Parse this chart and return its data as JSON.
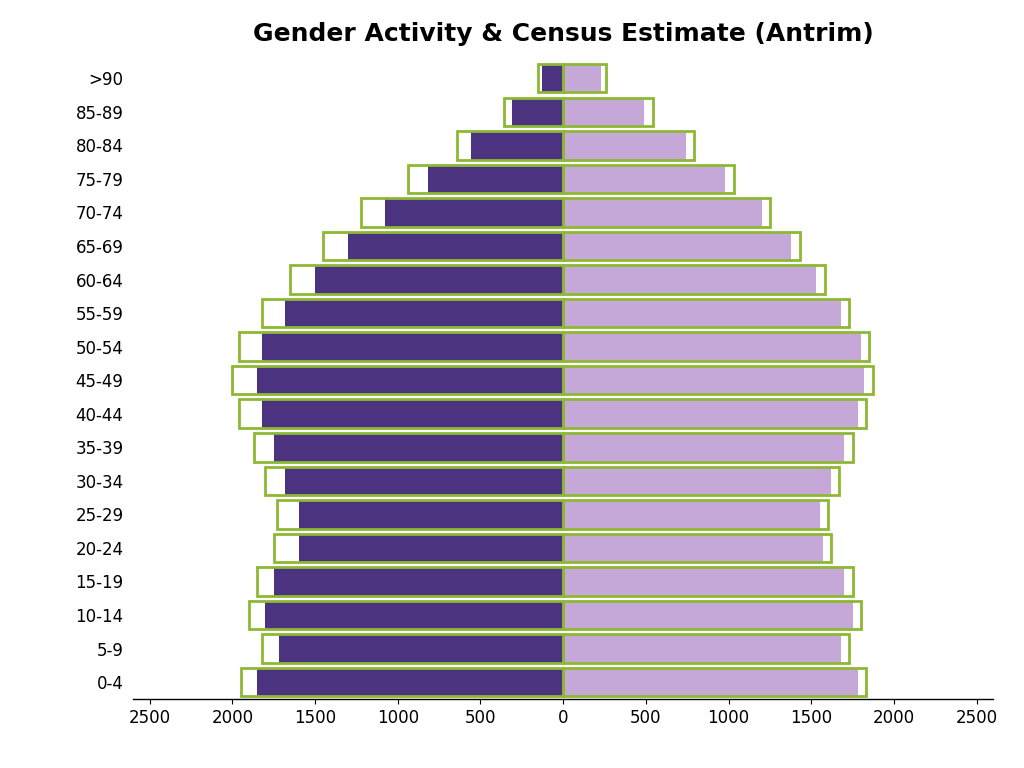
{
  "title": "Gender Activity & Census Estimate (Antrim)",
  "age_groups": [
    "0-4",
    "5-9",
    "10-14",
    "15-19",
    "20-24",
    "25-29",
    "30-34",
    "35-39",
    "40-44",
    "45-49",
    "50-54",
    "55-59",
    "60-64",
    "65-69",
    "70-74",
    "75-79",
    "80-84",
    "85-89",
    ">90"
  ],
  "male_activity": [
    1850,
    1720,
    1800,
    1750,
    1600,
    1600,
    1680,
    1750,
    1820,
    1850,
    1820,
    1680,
    1500,
    1300,
    1080,
    820,
    560,
    310,
    130
  ],
  "female_activity": [
    1780,
    1680,
    1750,
    1700,
    1570,
    1550,
    1620,
    1700,
    1780,
    1820,
    1800,
    1680,
    1530,
    1380,
    1200,
    980,
    740,
    490,
    230
  ],
  "male_census": [
    1950,
    1820,
    1900,
    1850,
    1750,
    1730,
    1800,
    1870,
    1960,
    2000,
    1960,
    1820,
    1650,
    1450,
    1220,
    940,
    640,
    360,
    150
  ],
  "female_census": [
    1830,
    1730,
    1800,
    1750,
    1620,
    1600,
    1670,
    1750,
    1830,
    1870,
    1850,
    1730,
    1580,
    1430,
    1250,
    1030,
    790,
    540,
    260
  ],
  "male_bar_color": "#4B3380",
  "female_bar_color": "#C5A8D8",
  "census_edge_color": "#8db832",
  "census_linewidth": 2.0,
  "background_color": "#ffffff",
  "xlim": 2600,
  "title_fontsize": 18,
  "tick_fontsize": 12
}
